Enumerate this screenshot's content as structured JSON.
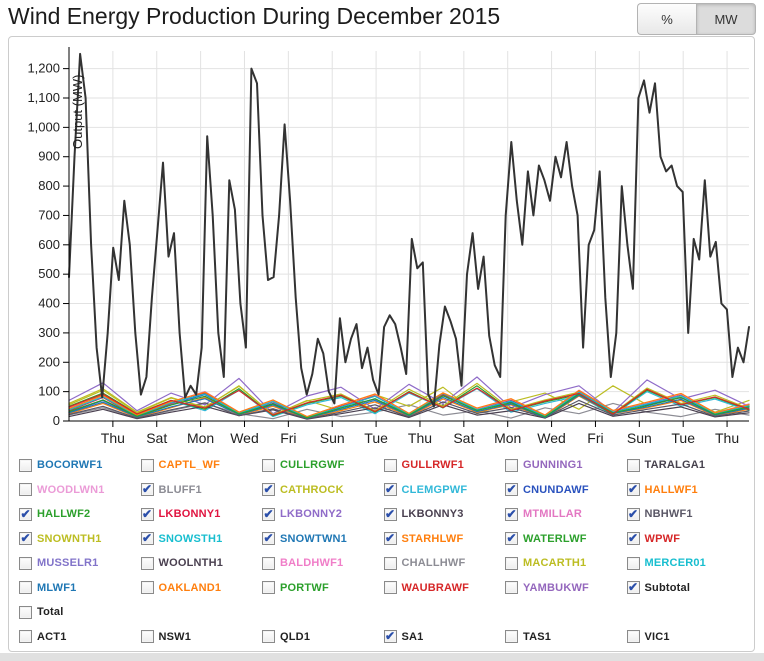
{
  "header": {
    "title": "Wind Energy Production During December 2015"
  },
  "toolbar": {
    "percent_label": "%",
    "mw_label": "MW",
    "active_unit": "MW"
  },
  "chart_data": {
    "type": "line",
    "title": "Wind Energy Production During December 2015",
    "xlabel": "",
    "ylabel": "Output (MW)",
    "ylim": [
      0,
      1260
    ],
    "grid": true,
    "legend_position": "below-as-checkboxes",
    "ytick_labels": [
      "0",
      "100",
      "200",
      "300",
      "400",
      "500",
      "600",
      "700",
      "800",
      "900",
      "1,000",
      "1,100",
      "1,200"
    ],
    "ytick_step": 100,
    "xtick_labels": [
      "Thu",
      "Sat",
      "Mon",
      "Wed",
      "Fri",
      "Sun",
      "Tue",
      "Thu",
      "Sat",
      "Mon",
      "Wed",
      "Fri",
      "Sun",
      "Tue",
      "Thu"
    ],
    "xtick_first_day": 2,
    "xtick_day_step": 2,
    "x_span_days": 31,
    "series": [
      {
        "name": "BLUFF1",
        "color": "#8c8c94",
        "width": 1.2,
        "values": [
          20,
          45,
          10,
          35,
          60,
          25,
          8,
          40,
          15,
          30,
          55,
          20,
          35,
          10,
          45,
          25,
          60,
          30,
          15,
          40,
          20
        ]
      },
      {
        "name": "CATHROCK",
        "color": "#bcbd22",
        "width": 1.2,
        "values": [
          60,
          110,
          30,
          80,
          45,
          120,
          20,
          70,
          35,
          90,
          50,
          115,
          25,
          65,
          95,
          40,
          120,
          55,
          85,
          30,
          70
        ]
      },
      {
        "name": "CLEMGPWF",
        "color": "#31b8d8",
        "width": 1.2,
        "values": [
          40,
          90,
          20,
          70,
          35,
          105,
          15,
          55,
          80,
          25,
          95,
          45,
          110,
          30,
          60,
          85,
          20,
          100,
          50,
          75,
          35
        ]
      },
      {
        "name": "CNUNDAWF",
        "color": "#2a52be",
        "width": 1.2,
        "values": [
          30,
          70,
          15,
          55,
          90,
          25,
          60,
          10,
          45,
          75,
          20,
          85,
          40,
          65,
          15,
          95,
          35,
          55,
          80,
          25,
          50
        ]
      },
      {
        "name": "HALLWF1",
        "color": "#ff7f0e",
        "width": 1.2,
        "values": [
          25,
          60,
          12,
          45,
          80,
          20,
          50,
          8,
          35,
          65,
          15,
          75,
          30,
          55,
          10,
          85,
          25,
          45,
          70,
          18,
          40
        ]
      },
      {
        "name": "HALLWF2",
        "color": "#2ca02c",
        "width": 1.2,
        "values": [
          50,
          95,
          25,
          70,
          40,
          110,
          18,
          60,
          85,
          30,
          100,
          45,
          120,
          35,
          65,
          90,
          22,
          105,
          55,
          80,
          38
        ]
      },
      {
        "name": "LKBONNY1",
        "color": "#e01440",
        "width": 1.2,
        "values": [
          35,
          80,
          15,
          60,
          95,
          28,
          65,
          12,
          50,
          85,
          22,
          90,
          40,
          70,
          18,
          100,
          30,
          60,
          88,
          25,
          55
        ]
      },
      {
        "name": "LKBONNY2",
        "color": "#8f6bc8",
        "width": 1.2,
        "values": [
          70,
          130,
          35,
          95,
          55,
          145,
          25,
          85,
          115,
          40,
          125,
          60,
          150,
          45,
          90,
          120,
          30,
          140,
          75,
          105,
          50
        ]
      },
      {
        "name": "LKBONNY3",
        "color": "#4a4050",
        "width": 1.2,
        "values": [
          15,
          40,
          8,
          30,
          50,
          18,
          38,
          6,
          25,
          45,
          12,
          55,
          20,
          35,
          10,
          60,
          16,
          32,
          48,
          14,
          28
        ]
      },
      {
        "name": "MTMILLAR",
        "color": "#e377c2",
        "width": 1.2,
        "values": [
          45,
          85,
          20,
          65,
          100,
          30,
          70,
          14,
          55,
          90,
          25,
          95,
          42,
          75,
          20,
          105,
          35,
          62,
          92,
          28,
          58
        ]
      },
      {
        "name": "NBHWF1",
        "color": "#5a5766",
        "width": 1.2,
        "values": [
          22,
          50,
          10,
          38,
          62,
          18,
          42,
          8,
          30,
          55,
          14,
          65,
          26,
          46,
          12,
          70,
          20,
          40,
          58,
          16,
          34
        ]
      },
      {
        "name": "SNOWNTH1",
        "color": "#bcbd22",
        "width": 1.2,
        "values": [
          55,
          105,
          28,
          78,
          48,
          118,
          22,
          68,
          92,
          35,
          108,
          50,
          128,
          40,
          72,
          98,
          26,
          112,
          60,
          88,
          42
        ]
      },
      {
        "name": "SNOWSTH1",
        "color": "#17becf",
        "width": 1.2,
        "values": [
          38,
          82,
          18,
          62,
          92,
          26,
          66,
          12,
          48,
          84,
          22,
          94,
          38,
          68,
          16,
          98,
          30,
          58,
          86,
          24,
          52
        ]
      },
      {
        "name": "SNOWTWN1",
        "color": "#1f77b4",
        "width": 1.2,
        "values": [
          28,
          64,
          14,
          48,
          76,
          22,
          54,
          10,
          40,
          70,
          18,
          80,
          32,
          58,
          12,
          88,
          26,
          48,
          74,
          20,
          44
        ]
      },
      {
        "name": "STARHLWF",
        "color": "#ff7f0e",
        "width": 1.2,
        "values": [
          42,
          88,
          20,
          66,
          98,
          30,
          72,
          15,
          54,
          92,
          26,
          96,
          44,
          76,
          20,
          104,
          36,
          64,
          94,
          28,
          56
        ]
      },
      {
        "name": "WATERLWF",
        "color": "#2ca02c",
        "width": 1.2,
        "values": [
          32,
          72,
          16,
          54,
          84,
          24,
          58,
          11,
          44,
          76,
          20,
          86,
          36,
          62,
          14,
          92,
          28,
          52,
          80,
          22,
          48
        ]
      },
      {
        "name": "WPWF",
        "color": "#d62728",
        "width": 1.2,
        "values": [
          48,
          92,
          24,
          70,
          44,
          104,
          20,
          62,
          88,
          32,
          98,
          46,
          112,
          36,
          68,
          94,
          24,
          108,
          56,
          82,
          40
        ]
      },
      {
        "name": "Subtotal",
        "color": "#333333",
        "width": 2,
        "values": [
          490,
          900,
          1250,
          1100,
          600,
          250,
          80,
          300,
          590,
          480,
          750,
          600,
          300,
          90,
          150,
          420,
          650,
          880,
          560,
          640,
          300,
          80,
          120,
          90,
          250,
          970,
          700,
          300,
          150,
          820,
          720,
          400,
          250,
          1200,
          1150,
          700,
          480,
          490,
          700,
          1010,
          750,
          420,
          180,
          90,
          160,
          280,
          230,
          100,
          60,
          350,
          200,
          280,
          330,
          180,
          250,
          140,
          90,
          320,
          360,
          330,
          250,
          160,
          620,
          520,
          540,
          90,
          50,
          260,
          390,
          340,
          280,
          120,
          500,
          640,
          450,
          560,
          290,
          190,
          150,
          700,
          950,
          750,
          600,
          850,
          700,
          870,
          820,
          750,
          900,
          830,
          950,
          800,
          700,
          250,
          600,
          650,
          850,
          420,
          150,
          300,
          800,
          600,
          450,
          1100,
          1160,
          1050,
          1150,
          900,
          850,
          870,
          800,
          780,
          300,
          620,
          550,
          820,
          560,
          610,
          400,
          380,
          150,
          250,
          200,
          320
        ]
      }
    ]
  },
  "legend": {
    "farms": [
      {
        "label": "BOCORWF1",
        "color": "#1f77b4",
        "checked": false
      },
      {
        "label": "CAPTL_WF",
        "color": "#ff7f0e",
        "checked": false
      },
      {
        "label": "CULLRGWF",
        "color": "#2ca02c",
        "checked": false
      },
      {
        "label": "GULLRWF1",
        "color": "#d62728",
        "checked": false
      },
      {
        "label": "GUNNING1",
        "color": "#9467bd",
        "checked": false
      },
      {
        "label": "TARALGA1",
        "color": "#47424e",
        "checked": false
      },
      {
        "label": "WOODLWN1",
        "color": "#eb9bd7",
        "checked": false
      },
      {
        "label": "BLUFF1",
        "color": "#8c8c94",
        "checked": true
      },
      {
        "label": "CATHROCK",
        "color": "#bcbd22",
        "checked": true
      },
      {
        "label": "CLEMGPWF",
        "color": "#31b8d8",
        "checked": true
      },
      {
        "label": "CNUNDAWF",
        "color": "#2a52be",
        "checked": true
      },
      {
        "label": "HALLWF1",
        "color": "#ff7f0e",
        "checked": true
      },
      {
        "label": "HALLWF2",
        "color": "#2ca02c",
        "checked": true
      },
      {
        "label": "LKBONNY1",
        "color": "#e01440",
        "checked": true
      },
      {
        "label": "LKBONNY2",
        "color": "#8f6bc8",
        "checked": true
      },
      {
        "label": "LKBONNY3",
        "color": "#4a4050",
        "checked": true
      },
      {
        "label": "MTMILLAR",
        "color": "#e377c2",
        "checked": true
      },
      {
        "label": "NBHWF1",
        "color": "#5a5766",
        "checked": true
      },
      {
        "label": "SNOWNTH1",
        "color": "#bcbd22",
        "checked": true
      },
      {
        "label": "SNOWSTH1",
        "color": "#17becf",
        "checked": true
      },
      {
        "label": "SNOWTWN1",
        "color": "#1f77b4",
        "checked": true
      },
      {
        "label": "STARHLWF",
        "color": "#ff7f0e",
        "checked": true
      },
      {
        "label": "WATERLWF",
        "color": "#2ca02c",
        "checked": true
      },
      {
        "label": "WPWF",
        "color": "#d62728",
        "checked": true
      },
      {
        "label": "MUSSELR1",
        "color": "#8173c9",
        "checked": false
      },
      {
        "label": "WOOLNTH1",
        "color": "#4a4050",
        "checked": false
      },
      {
        "label": "BALDHWF1",
        "color": "#f07ec8",
        "checked": false
      },
      {
        "label": "CHALLHWF",
        "color": "#8c8c94",
        "checked": false
      },
      {
        "label": "MACARTH1",
        "color": "#bcbd22",
        "checked": false
      },
      {
        "label": "MERCER01",
        "color": "#17becf",
        "checked": false
      },
      {
        "label": "MLWF1",
        "color": "#1f77b4",
        "checked": false
      },
      {
        "label": "OAKLAND1",
        "color": "#ff7f0e",
        "checked": false
      },
      {
        "label": "PORTWF",
        "color": "#2ca02c",
        "checked": false
      },
      {
        "label": "WAUBRAWF",
        "color": "#d62728",
        "checked": false
      },
      {
        "label": "YAMBUKWF",
        "color": "#9467bd",
        "checked": false
      },
      {
        "label": "Subtotal",
        "color": "#222222",
        "checked": true
      }
    ],
    "total": {
      "label": "Total",
      "color": "#222222",
      "checked": false
    },
    "regions": [
      {
        "label": "ACT1",
        "color": "#222222",
        "checked": false
      },
      {
        "label": "NSW1",
        "color": "#222222",
        "checked": false
      },
      {
        "label": "QLD1",
        "color": "#222222",
        "checked": false
      },
      {
        "label": "SA1",
        "color": "#222222",
        "checked": true
      },
      {
        "label": "TAS1",
        "color": "#222222",
        "checked": false
      },
      {
        "label": "VIC1",
        "color": "#222222",
        "checked": false
      }
    ]
  }
}
